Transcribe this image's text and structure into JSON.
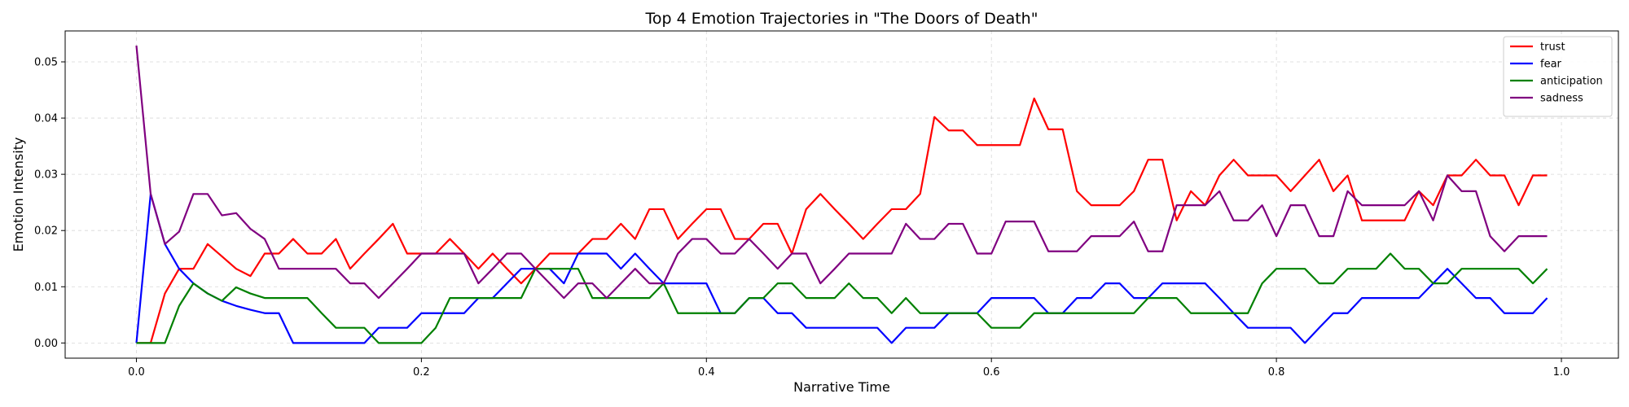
{
  "chart_data": {
    "type": "line",
    "title": "Top 4 Emotion Trajectories in \"The Doors of Death\"",
    "xlabel": "Narrative Time",
    "ylabel": "Emotion Intensity",
    "xlim": [
      -0.05,
      1.04
    ],
    "ylim": [
      -0.0027,
      0.0555
    ],
    "xticks": [
      0.0,
      0.2,
      0.4,
      0.6,
      0.8,
      1.0
    ],
    "xtick_labels": [
      "0.0",
      "0.2",
      "0.4",
      "0.6",
      "0.8",
      "1.0"
    ],
    "yticks": [
      0.0,
      0.01,
      0.02,
      0.03,
      0.04,
      0.05
    ],
    "ytick_labels": [
      "0.00",
      "0.01",
      "0.02",
      "0.03",
      "0.04",
      "0.05"
    ],
    "grid": true,
    "legend_position": "top-right",
    "x": [
      0.0,
      0.01,
      0.02,
      0.03,
      0.04,
      0.05,
      0.06,
      0.07,
      0.08,
      0.09,
      0.1,
      0.11,
      0.12,
      0.13,
      0.14,
      0.15,
      0.16,
      0.17,
      0.18,
      0.19,
      0.2,
      0.21,
      0.22,
      0.23,
      0.24,
      0.25,
      0.26,
      0.27,
      0.28,
      0.29,
      0.3,
      0.31,
      0.32,
      0.33,
      0.34,
      0.35,
      0.36,
      0.37,
      0.38,
      0.39,
      0.4,
      0.41,
      0.42,
      0.43,
      0.44,
      0.45,
      0.46,
      0.47,
      0.48,
      0.49,
      0.5,
      0.51,
      0.52,
      0.53,
      0.54,
      0.55,
      0.56,
      0.57,
      0.58,
      0.59,
      0.6,
      0.61,
      0.62,
      0.63,
      0.64,
      0.65,
      0.66,
      0.67,
      0.68,
      0.69,
      0.7,
      0.71,
      0.72,
      0.73,
      0.74,
      0.75,
      0.76,
      0.77,
      0.78,
      0.79,
      0.8,
      0.81,
      0.82,
      0.83,
      0.84,
      0.85,
      0.86,
      0.87,
      0.88,
      0.89,
      0.9,
      0.91,
      0.92,
      0.93,
      0.94,
      0.95,
      0.96,
      0.97,
      0.98,
      0.99
    ],
    "series": [
      {
        "name": "trust",
        "color": "#ff0000",
        "values": [
          0.0,
          0.0,
          0.0088,
          0.0132,
          0.0132,
          0.0176,
          0.0154,
          0.0132,
          0.0119,
          0.0159,
          0.0159,
          0.0185,
          0.0159,
          0.0159,
          0.0185,
          0.0132,
          0.0159,
          0.0185,
          0.0212,
          0.0159,
          0.0159,
          0.0159,
          0.0185,
          0.0159,
          0.0132,
          0.0159,
          0.0132,
          0.0106,
          0.0132,
          0.0159,
          0.0159,
          0.0159,
          0.0185,
          0.0185,
          0.0212,
          0.0185,
          0.0238,
          0.0238,
          0.0185,
          0.0212,
          0.0238,
          0.0238,
          0.0185,
          0.0185,
          0.0212,
          0.0212,
          0.0159,
          0.0238,
          0.0265,
          0.0238,
          0.0212,
          0.0185,
          0.0212,
          0.0238,
          0.0238,
          0.0265,
          0.0402,
          0.0378,
          0.0378,
          0.0352,
          0.0352,
          0.0352,
          0.0352,
          0.0435,
          0.038,
          0.038,
          0.027,
          0.0245,
          0.0245,
          0.0245,
          0.027,
          0.0326,
          0.0326,
          0.0218,
          0.027,
          0.0245,
          0.0298,
          0.0326,
          0.0298,
          0.0298,
          0.0298,
          0.027,
          0.0298,
          0.0326,
          0.027,
          0.0298,
          0.0218,
          0.0218,
          0.0218,
          0.0218,
          0.027,
          0.0245,
          0.0298,
          0.0298,
          0.0326,
          0.0298,
          0.0298,
          0.0245,
          0.0298,
          0.0298
        ]
      },
      {
        "name": "fear",
        "color": "#0000ff",
        "values": [
          0.0,
          0.0265,
          0.0176,
          0.0132,
          0.0106,
          0.0088,
          0.0075,
          0.0066,
          0.0059,
          0.0053,
          0.0053,
          0.0,
          0.0,
          0.0,
          0.0,
          0.0,
          0.0,
          0.0027,
          0.0027,
          0.0027,
          0.0053,
          0.0053,
          0.0053,
          0.0053,
          0.008,
          0.008,
          0.0106,
          0.0132,
          0.0132,
          0.0132,
          0.0106,
          0.0159,
          0.0159,
          0.0159,
          0.0132,
          0.0159,
          0.0132,
          0.0106,
          0.0106,
          0.0106,
          0.0106,
          0.0053,
          0.0053,
          0.008,
          0.008,
          0.0053,
          0.0053,
          0.0027,
          0.0027,
          0.0027,
          0.0027,
          0.0027,
          0.0027,
          0.0,
          0.0027,
          0.0027,
          0.0027,
          0.0053,
          0.0053,
          0.0053,
          0.008,
          0.008,
          0.008,
          0.008,
          0.0053,
          0.0053,
          0.008,
          0.008,
          0.0106,
          0.0106,
          0.008,
          0.008,
          0.0106,
          0.0106,
          0.0106,
          0.0106,
          0.008,
          0.0053,
          0.0027,
          0.0027,
          0.0027,
          0.0027,
          0.0,
          0.0027,
          0.0053,
          0.0053,
          0.008,
          0.008,
          0.008,
          0.008,
          0.008,
          0.0106,
          0.0132,
          0.0106,
          0.008,
          0.008,
          0.0053,
          0.0053,
          0.0053,
          0.008
        ]
      },
      {
        "name": "anticipation",
        "color": "#008000",
        "values": [
          0.0,
          0.0,
          0.0,
          0.0066,
          0.0106,
          0.0088,
          0.0075,
          0.0099,
          0.0088,
          0.008,
          0.008,
          0.008,
          0.008,
          0.0053,
          0.0027,
          0.0027,
          0.0027,
          0.0,
          0.0,
          0.0,
          0.0,
          0.0027,
          0.008,
          0.008,
          0.008,
          0.008,
          0.008,
          0.008,
          0.0132,
          0.0132,
          0.0132,
          0.0132,
          0.008,
          0.008,
          0.008,
          0.008,
          0.008,
          0.0106,
          0.0053,
          0.0053,
          0.0053,
          0.0053,
          0.0053,
          0.008,
          0.008,
          0.0106,
          0.0106,
          0.008,
          0.008,
          0.008,
          0.0106,
          0.008,
          0.008,
          0.0053,
          0.008,
          0.0053,
          0.0053,
          0.0053,
          0.0053,
          0.0053,
          0.0027,
          0.0027,
          0.0027,
          0.0053,
          0.0053,
          0.0053,
          0.0053,
          0.0053,
          0.0053,
          0.0053,
          0.0053,
          0.008,
          0.008,
          0.008,
          0.0053,
          0.0053,
          0.0053,
          0.0053,
          0.0053,
          0.0106,
          0.0132,
          0.0132,
          0.0132,
          0.0106,
          0.0106,
          0.0132,
          0.0132,
          0.0132,
          0.0159,
          0.0132,
          0.0132,
          0.0106,
          0.0106,
          0.0132,
          0.0132,
          0.0132,
          0.0132,
          0.0132,
          0.0106,
          0.0132
        ]
      },
      {
        "name": "sadness",
        "color": "#800080",
        "values": [
          0.0529,
          0.0265,
          0.0176,
          0.0198,
          0.0265,
          0.0265,
          0.0227,
          0.0231,
          0.0203,
          0.0185,
          0.0132,
          0.0132,
          0.0132,
          0.0132,
          0.0132,
          0.0106,
          0.0106,
          0.008,
          0.0106,
          0.0132,
          0.0159,
          0.0159,
          0.0159,
          0.0159,
          0.0106,
          0.0132,
          0.0159,
          0.0159,
          0.0132,
          0.0106,
          0.008,
          0.0106,
          0.0106,
          0.008,
          0.0106,
          0.0132,
          0.0106,
          0.0106,
          0.0159,
          0.0185,
          0.0185,
          0.0159,
          0.0159,
          0.0185,
          0.0159,
          0.0132,
          0.0159,
          0.0159,
          0.0106,
          0.0132,
          0.0159,
          0.0159,
          0.0159,
          0.0159,
          0.0212,
          0.0185,
          0.0185,
          0.0212,
          0.0212,
          0.0159,
          0.0159,
          0.0216,
          0.0216,
          0.0216,
          0.0163,
          0.0163,
          0.0163,
          0.019,
          0.019,
          0.019,
          0.0216,
          0.0163,
          0.0163,
          0.0245,
          0.0245,
          0.0245,
          0.027,
          0.0218,
          0.0218,
          0.0245,
          0.019,
          0.0245,
          0.0245,
          0.019,
          0.019,
          0.027,
          0.0245,
          0.0245,
          0.0245,
          0.0245,
          0.027,
          0.0218,
          0.0298,
          0.027,
          0.027,
          0.019,
          0.0163,
          0.019,
          0.019,
          0.019
        ]
      }
    ]
  }
}
